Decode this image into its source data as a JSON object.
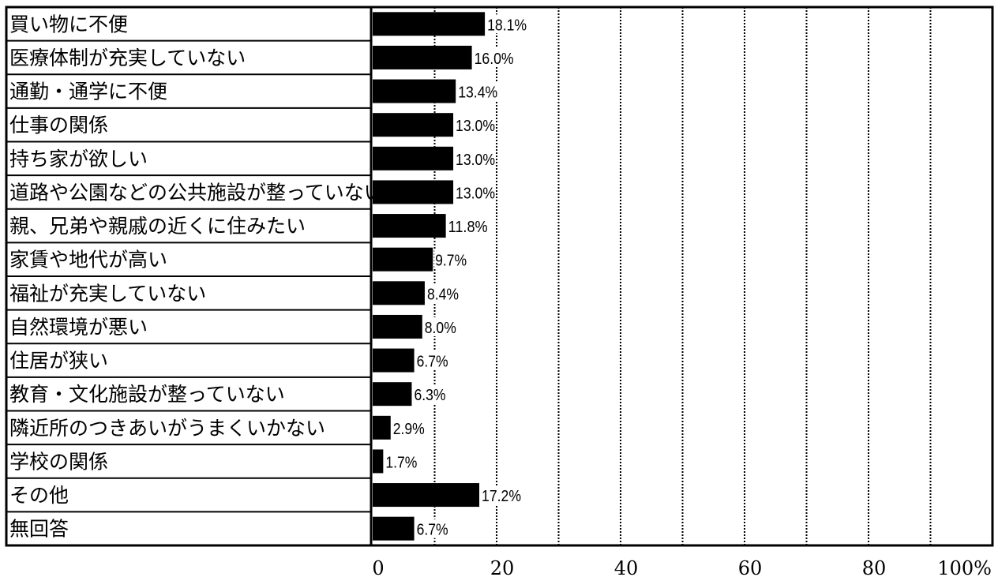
{
  "chart_data": {
    "type": "bar",
    "orientation": "horizontal",
    "categories": [
      "買い物に不便",
      "医療体制が充実していない",
      "通勤・通学に不便",
      "仕事の関係",
      "持ち家が欲しい",
      "道路や公園などの公共施設が整っていない",
      "親、兄弟や親戚の近くに住みたい",
      "家賃や地代が高い",
      "福祉が充実していない",
      "自然環境が悪い",
      "住居が狭い",
      "教育・文化施設が整っていない",
      "隣近所のつきあいがうまくいかない",
      "学校の関係",
      "その他",
      "無回答"
    ],
    "values": [
      18.1,
      16.0,
      13.4,
      13.0,
      13.0,
      13.0,
      11.8,
      9.7,
      8.4,
      8.0,
      6.7,
      6.3,
      2.9,
      1.7,
      17.2,
      6.7
    ],
    "value_labels": [
      "18.1%",
      "16.0%",
      "13.4%",
      "13.0%",
      "13.0%",
      "13.0%",
      "11.8%",
      "9.7%",
      "8.4%",
      "8.0%",
      "6.7%",
      "6.3%",
      "2.9%",
      "1.7%",
      "17.2%",
      "6.7%"
    ],
    "xlim": [
      0,
      100
    ],
    "x_ticks": [
      0,
      20,
      40,
      60,
      80,
      100
    ],
    "x_tick_labels": [
      "0",
      "20",
      "40",
      "60",
      "80",
      "100%"
    ],
    "grid": true,
    "grid_style": "dotted",
    "bar_color": "#000000",
    "title": "",
    "xlabel": "",
    "ylabel": ""
  }
}
